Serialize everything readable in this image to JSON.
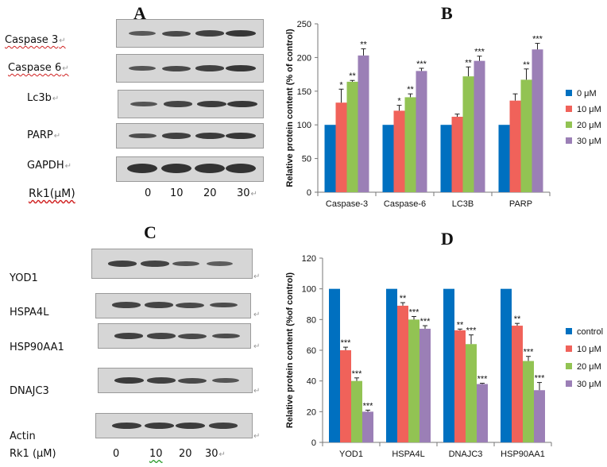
{
  "panels": {
    "a": {
      "letter": "A"
    },
    "b": {
      "letter": "B"
    },
    "c": {
      "letter": "C"
    },
    "d": {
      "letter": "D"
    }
  },
  "blot_a": {
    "labels": [
      "Caspase 3",
      "Caspase 6",
      "Lc3b",
      "PARP",
      "GAPDH"
    ],
    "dose_label": "Rk1(μM)",
    "doses": [
      "0",
      "10",
      "20",
      "30"
    ],
    "band_intensity": [
      [
        0.55,
        0.75,
        0.85,
        0.95
      ],
      [
        0.6,
        0.75,
        0.85,
        0.95
      ],
      [
        0.6,
        0.8,
        0.9,
        0.95
      ],
      [
        0.7,
        0.85,
        0.9,
        0.95
      ],
      [
        1.0,
        1.0,
        1.0,
        1.0
      ]
    ]
  },
  "blot_c": {
    "labels": [
      "YOD1",
      "HSPA4L",
      "HSP90AA1",
      "DNAJC3",
      "Actin"
    ],
    "dose_label": "Rk1 (μM)",
    "doses": [
      "0",
      "10",
      "20",
      "30"
    ],
    "band_intensity": [
      [
        0.85,
        0.8,
        0.6,
        0.5
      ],
      [
        0.8,
        0.8,
        0.75,
        0.7
      ],
      [
        0.85,
        0.8,
        0.75,
        0.7
      ],
      [
        0.9,
        0.85,
        0.75,
        0.6
      ],
      [
        0.9,
        0.9,
        0.9,
        0.85
      ]
    ]
  },
  "colors": {
    "s0": "#0070C0",
    "s1": "#F0625A",
    "s2": "#92C353",
    "s3": "#9B7FB6"
  },
  "chart_data": [
    {
      "type": "bar",
      "panel": "B",
      "title": "",
      "xlabel": "",
      "ylabel": "Relative protein content (% of control)",
      "ylim": [
        0,
        250
      ],
      "yticks": [
        0,
        50,
        100,
        150,
        200,
        250
      ],
      "categories": [
        "Caspase-3",
        "Caspase-6",
        "LC3B",
        "PARP"
      ],
      "series": [
        {
          "name": "0 μM",
          "values": [
            100,
            100,
            100,
            100
          ],
          "errors": [
            0,
            0,
            0,
            0
          ],
          "sig": [
            "",
            "",
            "",
            ""
          ]
        },
        {
          "name": "10 μM",
          "values": [
            133,
            121,
            112,
            136
          ],
          "errors": [
            20,
            8,
            4,
            10
          ],
          "sig": [
            "*",
            "*",
            "",
            ""
          ]
        },
        {
          "name": "20 μM",
          "values": [
            164,
            141,
            172,
            167
          ],
          "errors": [
            2,
            5,
            14,
            16
          ],
          "sig": [
            "**",
            "**",
            "**",
            "**"
          ]
        },
        {
          "name": "30 μM",
          "values": [
            203,
            180,
            195,
            212
          ],
          "errors": [
            10,
            4,
            7,
            9
          ],
          "sig": [
            "**",
            "***",
            "***",
            "***"
          ]
        }
      ],
      "legend": "right"
    },
    {
      "type": "bar",
      "panel": "D",
      "title": "",
      "xlabel": "",
      "ylabel": "Relative protein content (%of control)",
      "ylim": [
        0,
        120
      ],
      "yticks": [
        0,
        20,
        40,
        60,
        80,
        100,
        120
      ],
      "categories": [
        "YOD1",
        "HSPA4L",
        "DNAJC3",
        "HSP90AA1"
      ],
      "series": [
        {
          "name": "control",
          "values": [
            100,
            100,
            100,
            100
          ],
          "errors": [
            0,
            0,
            0,
            0
          ],
          "sig": [
            "",
            "",
            "",
            ""
          ]
        },
        {
          "name": "10 μM",
          "values": [
            60,
            89,
            73,
            76
          ],
          "errors": [
            2,
            2,
            0.8,
            1.5
          ],
          "sig": [
            "***",
            "**",
            "**",
            "**"
          ]
        },
        {
          "name": "20 μM",
          "values": [
            40,
            80,
            64,
            53
          ],
          "errors": [
            2,
            2,
            6,
            3
          ],
          "sig": [
            "***",
            "***",
            "***",
            "***"
          ]
        },
        {
          "name": "30 μM",
          "values": [
            20,
            74,
            38,
            34
          ],
          "errors": [
            1,
            2,
            0.5,
            5
          ],
          "sig": [
            "***",
            "***",
            "***",
            "***"
          ]
        }
      ],
      "legend": "right"
    }
  ]
}
